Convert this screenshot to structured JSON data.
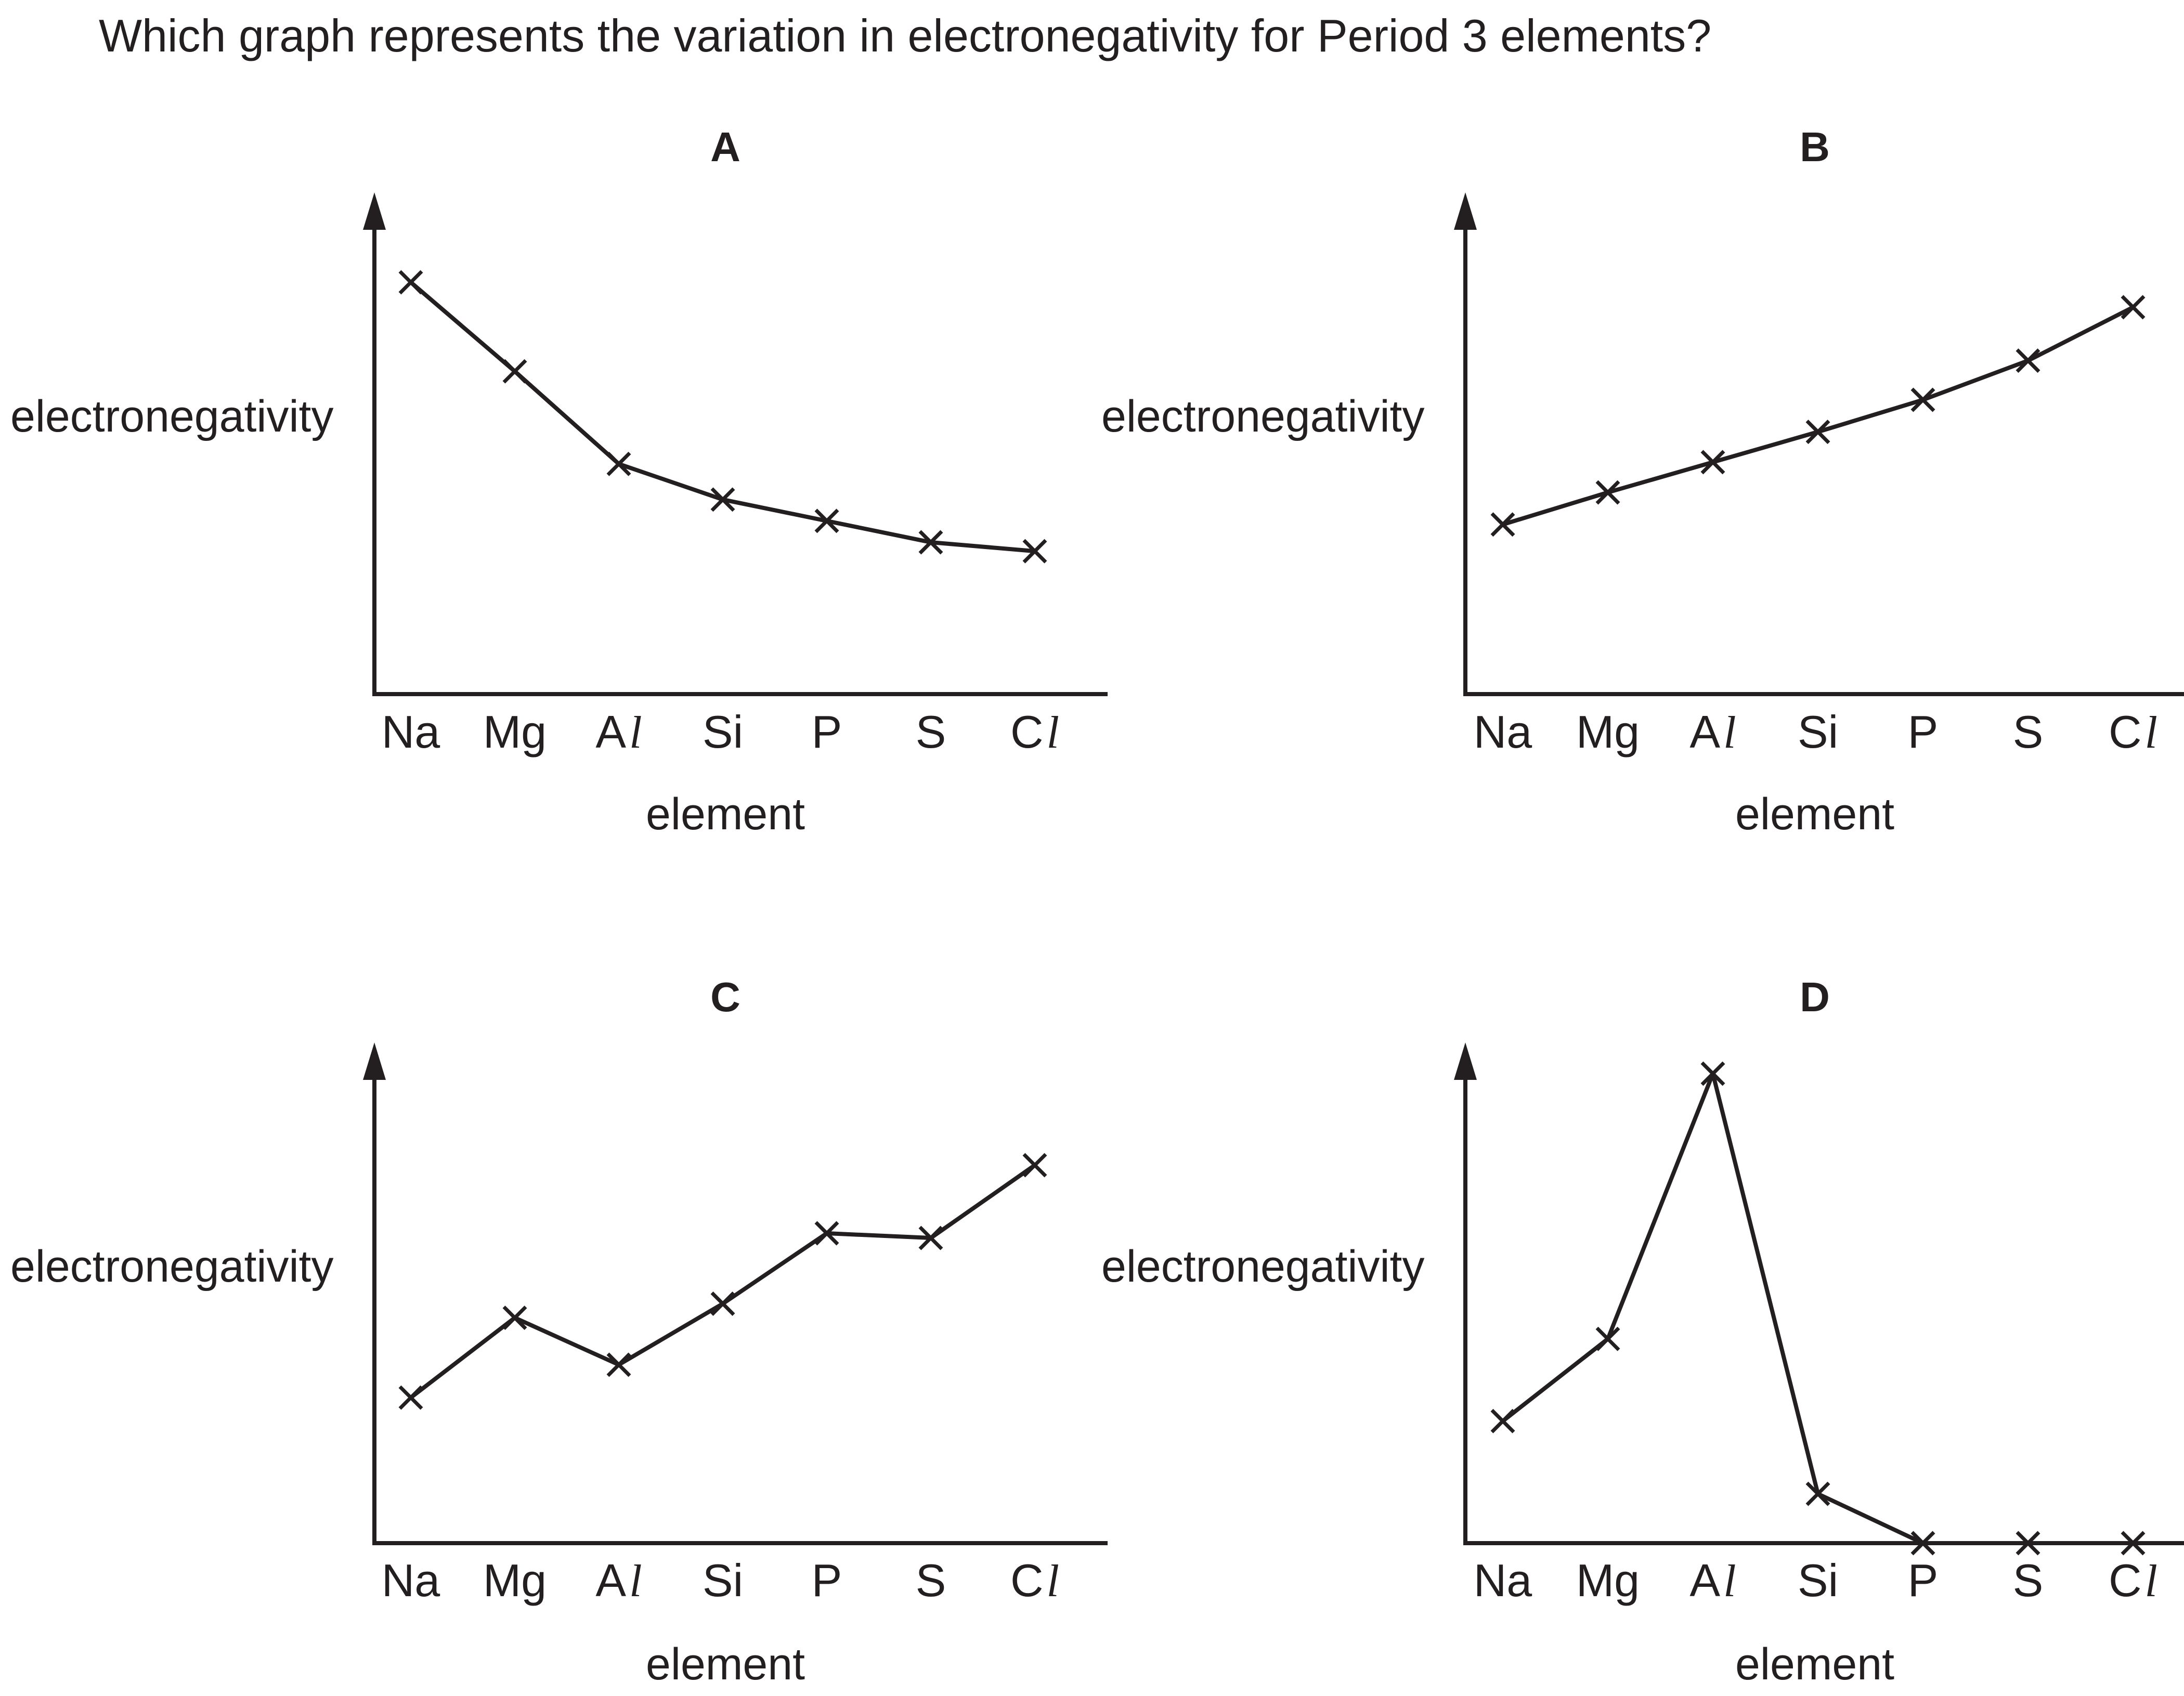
{
  "question": "Which graph represents the variation in electronegativity for Period 3 elements?",
  "colors": {
    "ink": "#231f20",
    "background": "#ffffff"
  },
  "chart_data": [
    {
      "type": "line",
      "title": "A",
      "xlabel": "element",
      "ylabel": "electronegativity",
      "categories": [
        {
          "main": "Na",
          "ital": ""
        },
        {
          "main": "Mg",
          "ital": ""
        },
        {
          "main": "A",
          "ital": "l"
        },
        {
          "main": "Si",
          "ital": ""
        },
        {
          "main": "P",
          "ital": ""
        },
        {
          "main": "S",
          "ital": ""
        },
        {
          "main": "C",
          "ital": "l"
        }
      ],
      "ylim": [
        0,
        100
      ],
      "values": [
        93,
        68,
        42,
        32,
        26,
        20,
        17.5
      ],
      "marker": "x"
    },
    {
      "type": "line",
      "title": "B",
      "xlabel": "element",
      "ylabel": "electronegativity",
      "categories": [
        {
          "main": "Na",
          "ital": ""
        },
        {
          "main": "Mg",
          "ital": ""
        },
        {
          "main": "A",
          "ital": "l"
        },
        {
          "main": "Si",
          "ital": ""
        },
        {
          "main": "P",
          "ital": ""
        },
        {
          "main": "S",
          "ital": ""
        },
        {
          "main": "C",
          "ital": "l"
        }
      ],
      "ylim": [
        0,
        100
      ],
      "values": [
        25,
        34,
        42.5,
        51,
        60,
        71,
        86
      ],
      "marker": "x"
    },
    {
      "type": "line",
      "title": "C",
      "xlabel": "element",
      "ylabel": "electronegativity",
      "categories": [
        {
          "main": "Na",
          "ital": ""
        },
        {
          "main": "Mg",
          "ital": ""
        },
        {
          "main": "A",
          "ital": "l"
        },
        {
          "main": "Si",
          "ital": ""
        },
        {
          "main": "P",
          "ital": ""
        },
        {
          "main": "S",
          "ital": ""
        },
        {
          "main": "C",
          "ital": "l"
        }
      ],
      "ylim": [
        0,
        100
      ],
      "values": [
        31,
        48,
        38,
        51,
        66,
        65,
        80.5
      ],
      "marker": "x"
    },
    {
      "type": "line",
      "title": "D",
      "xlabel": "element",
      "ylabel": "electronegativity",
      "categories": [
        {
          "main": "Na",
          "ital": ""
        },
        {
          "main": "Mg",
          "ital": ""
        },
        {
          "main": "A",
          "ital": "l"
        },
        {
          "main": "Si",
          "ital": ""
        },
        {
          "main": "P",
          "ital": ""
        },
        {
          "main": "S",
          "ital": ""
        },
        {
          "main": "C",
          "ital": "l"
        }
      ],
      "ylim": [
        0,
        100
      ],
      "values": [
        26,
        43.5,
        100,
        10.5,
        0,
        0,
        0
      ],
      "marker": "x"
    }
  ]
}
